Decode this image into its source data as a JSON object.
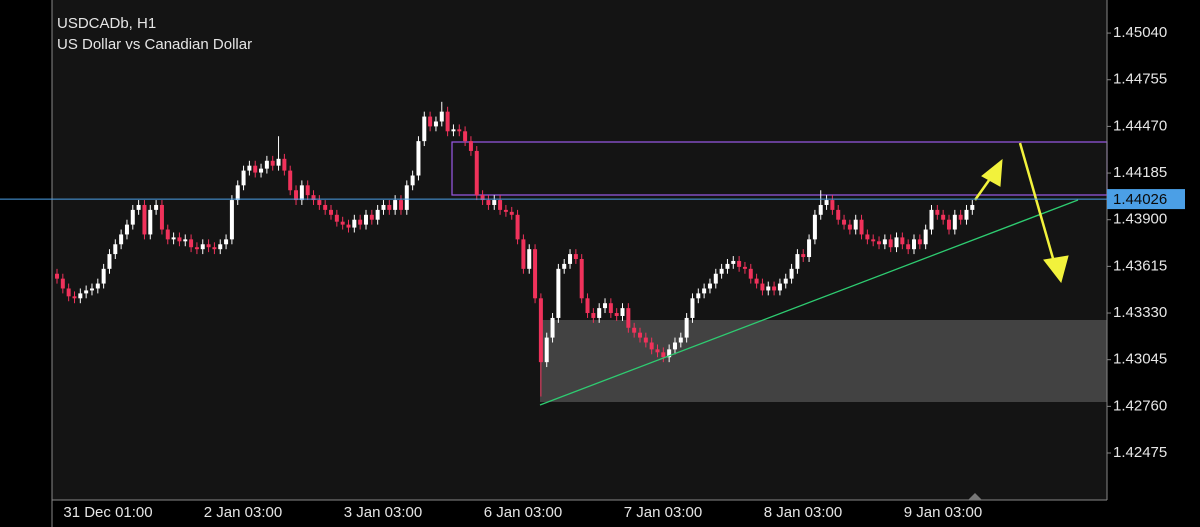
{
  "chart_data": {
    "type": "candlestick",
    "title": "USDCADb, H1",
    "subtitle": "US Dollar vs Canadian Dollar",
    "x_labels": [
      "31 Dec 01:00",
      "2 Jan 03:00",
      "3 Jan 03:00",
      "6 Jan 03:00",
      "7 Jan 03:00",
      "8 Jan 03:00",
      "9 Jan 03:00"
    ],
    "ylim": [
      1.42188,
      1.45242
    ],
    "yticks": [
      {
        "value": 1.4504,
        "label": "1.45040"
      },
      1.44755,
      {
        "value": 1.4447,
        "label": "1.44470"
      },
      1.44185,
      {
        "value": 1.439,
        "label": "1.43900"
      },
      1.43615,
      {
        "value": 1.4333,
        "label": "1.43330"
      },
      1.43045,
      {
        "value": 1.4276,
        "label": "1.42760"
      },
      1.42475
    ],
    "current_price": 1.44026,
    "up_color": "#ffffff",
    "down_color": "#f0325b",
    "price_line_color": "#4b9fe6",
    "ohlc": [
      [
        1.4357,
        1.436,
        1.4351,
        1.4354
      ],
      [
        1.4354,
        1.4357,
        1.4345,
        1.4348
      ],
      [
        1.4348,
        1.4351,
        1.43402,
        1.43432
      ],
      [
        1.43432,
        1.43462,
        1.4339,
        1.4342
      ],
      [
        1.4342,
        1.4348,
        1.4339,
        1.4345
      ],
      [
        1.4345,
        1.43498,
        1.4342,
        1.43468
      ],
      [
        1.43468,
        1.4351,
        1.43438,
        1.4348
      ],
      [
        1.4348,
        1.4354,
        1.4345,
        1.4351
      ],
      [
        1.4351,
        1.4363,
        1.4348,
        1.436
      ],
      [
        1.436,
        1.4372,
        1.4357,
        1.4369
      ],
      [
        1.4369,
        1.4378,
        1.4366,
        1.4375
      ],
      [
        1.4375,
        1.4384,
        1.4372,
        1.4381
      ],
      [
        1.4381,
        1.439,
        1.4378,
        1.4387
      ],
      [
        1.4387,
        1.4399,
        1.4384,
        1.4396
      ],
      [
        1.4396,
        1.4402,
        1.4393,
        1.4399
      ],
      [
        1.4399,
        1.4402,
        1.4378,
        1.4381
      ],
      [
        1.4381,
        1.4399,
        1.4378,
        1.4396
      ],
      [
        1.4396,
        1.4402,
        1.4393,
        1.4399
      ],
      [
        1.4399,
        1.4402,
        1.4381,
        1.4384
      ],
      [
        1.4384,
        1.4387,
        1.4375,
        1.4378
      ],
      [
        1.4378,
        1.43822,
        1.4375,
        1.43792
      ],
      [
        1.43792,
        1.43822,
        1.43738,
        1.43768
      ],
      [
        1.43768,
        1.4381,
        1.43738,
        1.4378
      ],
      [
        1.4378,
        1.4381,
        1.43702,
        1.43732
      ],
      [
        1.43732,
        1.43762,
        1.4369,
        1.4372
      ],
      [
        1.4372,
        1.4378,
        1.4369,
        1.4375
      ],
      [
        1.4375,
        1.4378,
        1.43702,
        1.43732
      ],
      [
        1.43732,
        1.43762,
        1.4369,
        1.4372
      ],
      [
        1.4372,
        1.4378,
        1.4369,
        1.4375
      ],
      [
        1.4375,
        1.4381,
        1.4372,
        1.4378
      ],
      [
        1.4378,
        1.4405,
        1.4375,
        1.4402
      ],
      [
        1.4402,
        1.4414,
        1.4399,
        1.4411
      ],
      [
        1.4411,
        1.4423,
        1.4408,
        1.442
      ],
      [
        1.442,
        1.4426,
        1.4417,
        1.4423
      ],
      [
        1.4423,
        1.4426,
        1.44158,
        1.44188
      ],
      [
        1.44188,
        1.44242,
        1.44158,
        1.44212
      ],
      [
        1.44212,
        1.4429,
        1.44182,
        1.4426
      ],
      [
        1.4426,
        1.4429,
        1.442,
        1.4423
      ],
      [
        1.4423,
        1.4441,
        1.442,
        1.44272
      ],
      [
        1.44272,
        1.44302,
        1.4417,
        1.442
      ],
      [
        1.442,
        1.4423,
        1.4405,
        1.4408
      ],
      [
        1.4408,
        1.4411,
        1.4399,
        1.4402
      ],
      [
        1.4402,
        1.4414,
        1.4399,
        1.4411
      ],
      [
        1.4411,
        1.4414,
        1.4402,
        1.4405
      ],
      [
        1.4405,
        1.4408,
        1.4399,
        1.4402
      ],
      [
        1.4402,
        1.4405,
        1.4396,
        1.4399
      ],
      [
        1.4399,
        1.4402,
        1.4393,
        1.4396
      ],
      [
        1.4396,
        1.4399,
        1.439,
        1.4393
      ],
      [
        1.4393,
        1.4396,
        1.43858,
        1.43888
      ],
      [
        1.43888,
        1.43918,
        1.4384,
        1.4387
      ],
      [
        1.4387,
        1.439,
        1.43822,
        1.43852
      ],
      [
        1.43852,
        1.4393,
        1.43822,
        1.439
      ],
      [
        1.439,
        1.4393,
        1.4384,
        1.4387
      ],
      [
        1.4387,
        1.4396,
        1.4384,
        1.4393
      ],
      [
        1.4393,
        1.4396,
        1.4387,
        1.439
      ],
      [
        1.439,
        1.4399,
        1.4387,
        1.4396
      ],
      [
        1.4396,
        1.4402,
        1.4393,
        1.4399
      ],
      [
        1.4399,
        1.4402,
        1.4393,
        1.4396
      ],
      [
        1.4396,
        1.4405,
        1.4393,
        1.4402
      ],
      [
        1.4402,
        1.4405,
        1.4393,
        1.4396
      ],
      [
        1.4396,
        1.4414,
        1.4393,
        1.4411
      ],
      [
        1.4411,
        1.442,
        1.4408,
        1.4417
      ],
      [
        1.4417,
        1.4441,
        1.4414,
        1.4438
      ],
      [
        1.4438,
        1.4456,
        1.4435,
        1.4453
      ],
      [
        1.4453,
        1.4456,
        1.4444,
        1.4447
      ],
      [
        1.4447,
        1.4453,
        1.4444,
        1.445
      ],
      [
        1.445,
        1.4462,
        1.4447,
        1.4456
      ],
      [
        1.4456,
        1.4459,
        1.4441,
        1.4444
      ],
      [
        1.4444,
        1.44482,
        1.4441,
        1.44452
      ],
      [
        1.44452,
        1.44482,
        1.4441,
        1.4444
      ],
      [
        1.4444,
        1.4447,
        1.4435,
        1.4438
      ],
      [
        1.4438,
        1.4441,
        1.4429,
        1.4432
      ],
      [
        1.4432,
        1.4435,
        1.4402,
        1.4405
      ],
      [
        1.4405,
        1.4408,
        1.4399,
        1.4402
      ],
      [
        1.4402,
        1.4405,
        1.4396,
        1.4399
      ],
      [
        1.4399,
        1.4405,
        1.4396,
        1.4402
      ],
      [
        1.4402,
        1.4405,
        1.4393,
        1.4396
      ],
      [
        1.4396,
        1.4399,
        1.43918,
        1.43948
      ],
      [
        1.43948,
        1.43978,
        1.439,
        1.4393
      ],
      [
        1.4393,
        1.4396,
        1.4375,
        1.4378
      ],
      [
        1.4378,
        1.4381,
        1.4357,
        1.436
      ],
      [
        1.436,
        1.4375,
        1.4357,
        1.4372
      ],
      [
        1.4372,
        1.4375,
        1.4339,
        1.4342
      ],
      [
        1.4342,
        1.4345,
        1.4282,
        1.4303
      ],
      [
        1.4303,
        1.4321,
        1.43,
        1.4318
      ],
      [
        1.4318,
        1.4333,
        1.4315,
        1.433
      ],
      [
        1.433,
        1.4363,
        1.4327,
        1.436
      ],
      [
        1.436,
        1.4366,
        1.4357,
        1.4363
      ],
      [
        1.4363,
        1.4372,
        1.436,
        1.4369
      ],
      [
        1.4369,
        1.4372,
        1.4363,
        1.4366
      ],
      [
        1.4366,
        1.4369,
        1.4339,
        1.4342
      ],
      [
        1.4342,
        1.4345,
        1.433,
        1.4333
      ],
      [
        1.4333,
        1.4336,
        1.4327,
        1.433
      ],
      [
        1.433,
        1.4339,
        1.4327,
        1.4336
      ],
      [
        1.4336,
        1.4342,
        1.4333,
        1.4339
      ],
      [
        1.4339,
        1.4342,
        1.433,
        1.4333
      ],
      [
        1.4333,
        1.4336,
        1.43282,
        1.43312
      ],
      [
        1.43312,
        1.4339,
        1.43282,
        1.4336
      ],
      [
        1.4336,
        1.4339,
        1.4321,
        1.4324
      ],
      [
        1.4324,
        1.4327,
        1.4318,
        1.4321
      ],
      [
        1.4321,
        1.4324,
        1.4315,
        1.4318
      ],
      [
        1.4318,
        1.4321,
        1.4312,
        1.4315
      ],
      [
        1.4315,
        1.4318,
        1.43078,
        1.43108
      ],
      [
        1.43108,
        1.43138,
        1.4306,
        1.4309
      ],
      [
        1.4309,
        1.4312,
        1.4303,
        1.4306
      ],
      [
        1.4306,
        1.43138,
        1.4303,
        1.43108
      ],
      [
        1.43108,
        1.4318,
        1.43078,
        1.4315
      ],
      [
        1.4315,
        1.4321,
        1.4312,
        1.4318
      ],
      [
        1.4318,
        1.4333,
        1.4315,
        1.433
      ],
      [
        1.433,
        1.4345,
        1.4327,
        1.4342
      ],
      [
        1.4342,
        1.4348,
        1.4339,
        1.4345
      ],
      [
        1.4345,
        1.4351,
        1.4342,
        1.4348
      ],
      [
        1.4348,
        1.4354,
        1.4345,
        1.4351
      ],
      [
        1.4351,
        1.436,
        1.4348,
        1.4357
      ],
      [
        1.4357,
        1.4363,
        1.4354,
        1.436
      ],
      [
        1.436,
        1.4366,
        1.4357,
        1.4363
      ],
      [
        1.4363,
        1.43678,
        1.436,
        1.43648
      ],
      [
        1.43648,
        1.43678,
        1.43582,
        1.43612
      ],
      [
        1.43612,
        1.43642,
        1.4357,
        1.436
      ],
      [
        1.436,
        1.4363,
        1.4351,
        1.4354
      ],
      [
        1.4354,
        1.4357,
        1.4348,
        1.4351
      ],
      [
        1.4351,
        1.4354,
        1.43438,
        1.43468
      ],
      [
        1.43468,
        1.43522,
        1.43438,
        1.43492
      ],
      [
        1.43492,
        1.43522,
        1.43438,
        1.43468
      ],
      [
        1.43468,
        1.4354,
        1.43438,
        1.4351
      ],
      [
        1.4351,
        1.4357,
        1.4348,
        1.4354
      ],
      [
        1.4354,
        1.4363,
        1.4351,
        1.436
      ],
      [
        1.436,
        1.4372,
        1.4357,
        1.4369
      ],
      [
        1.4369,
        1.4372,
        1.43642,
        1.43672
      ],
      [
        1.43672,
        1.4381,
        1.43642,
        1.4378
      ],
      [
        1.4378,
        1.4396,
        1.4375,
        1.4393
      ],
      [
        1.4393,
        1.4408,
        1.439,
        1.4399
      ],
      [
        1.4399,
        1.4405,
        1.4396,
        1.4402
      ],
      [
        1.4402,
        1.4405,
        1.4393,
        1.4396
      ],
      [
        1.4396,
        1.4399,
        1.4387,
        1.439
      ],
      [
        1.439,
        1.4393,
        1.4384,
        1.4387
      ],
      [
        1.4387,
        1.439,
        1.4381,
        1.4384
      ],
      [
        1.4384,
        1.4393,
        1.4381,
        1.439
      ],
      [
        1.439,
        1.4393,
        1.4378,
        1.4381
      ],
      [
        1.4381,
        1.4384,
        1.4375,
        1.4378
      ],
      [
        1.4378,
        1.4381,
        1.43738,
        1.43768
      ],
      [
        1.43768,
        1.43798,
        1.4372,
        1.4375
      ],
      [
        1.4375,
        1.4381,
        1.4372,
        1.4378
      ],
      [
        1.4378,
        1.4381,
        1.43702,
        1.43732
      ],
      [
        1.43732,
        1.43822,
        1.43702,
        1.43792
      ],
      [
        1.43792,
        1.43822,
        1.4372,
        1.4375
      ],
      [
        1.4375,
        1.4378,
        1.4369,
        1.4372
      ],
      [
        1.4372,
        1.4381,
        1.4369,
        1.4378
      ],
      [
        1.4378,
        1.4381,
        1.4372,
        1.4375
      ],
      [
        1.4375,
        1.4387,
        1.4372,
        1.4384
      ],
      [
        1.4384,
        1.4399,
        1.4381,
        1.4396
      ],
      [
        1.4396,
        1.4399,
        1.439,
        1.4393
      ],
      [
        1.4393,
        1.4396,
        1.4387,
        1.439
      ],
      [
        1.439,
        1.4393,
        1.4381,
        1.4384
      ],
      [
        1.4384,
        1.4396,
        1.4381,
        1.4393
      ],
      [
        1.4393,
        1.4396,
        1.4387,
        1.439
      ],
      [
        1.439,
        1.4399,
        1.4387,
        1.4396
      ],
      [
        1.4396,
        1.4402,
        1.4393,
        1.4399
      ]
    ]
  }
}
